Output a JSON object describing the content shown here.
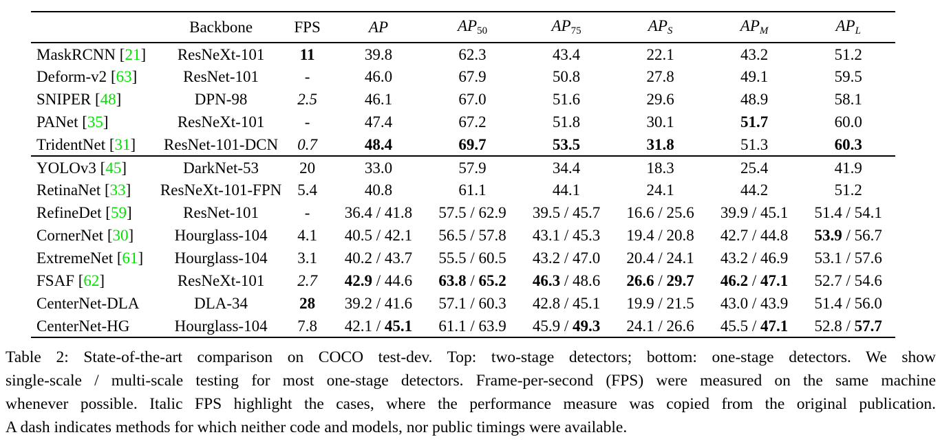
{
  "colors": {
    "citation_green": "#00e400",
    "text": "#000000",
    "rule": "#000000"
  },
  "table": {
    "headers": {
      "method": "",
      "backbone": "Backbone",
      "fps": "FPS",
      "metrics": [
        {
          "base": "AP",
          "sub": ""
        },
        {
          "base": "AP",
          "sub": "50"
        },
        {
          "base": "AP",
          "sub": "75"
        },
        {
          "base": "AP",
          "sub": "S"
        },
        {
          "base": "AP",
          "sub": "M"
        },
        {
          "base": "AP",
          "sub": "L"
        }
      ]
    },
    "sections": {
      "top": [
        {
          "method": "MaskRCNN",
          "cite": "21",
          "backbone": "ResNeXt-101",
          "fps": {
            "t": "11",
            "b": true
          },
          "metrics": [
            [
              {
                "t": "39.8"
              }
            ],
            [
              {
                "t": "62.3"
              }
            ],
            [
              {
                "t": "43.4"
              }
            ],
            [
              {
                "t": "22.1"
              }
            ],
            [
              {
                "t": "43.2"
              }
            ],
            [
              {
                "t": "51.2"
              }
            ]
          ]
        },
        {
          "method": "Deform-v2",
          "cite": "63",
          "backbone": "ResNet-101",
          "fps": {
            "t": "-"
          },
          "metrics": [
            [
              {
                "t": "46.0"
              }
            ],
            [
              {
                "t": "67.9"
              }
            ],
            [
              {
                "t": "50.8"
              }
            ],
            [
              {
                "t": "27.8"
              }
            ],
            [
              {
                "t": "49.1"
              }
            ],
            [
              {
                "t": "59.5"
              }
            ]
          ]
        },
        {
          "method": "SNIPER",
          "cite": "48",
          "backbone": "DPN-98",
          "fps": {
            "t": "2.5",
            "i": true
          },
          "metrics": [
            [
              {
                "t": "46.1"
              }
            ],
            [
              {
                "t": "67.0"
              }
            ],
            [
              {
                "t": "51.6"
              }
            ],
            [
              {
                "t": "29.6"
              }
            ],
            [
              {
                "t": "48.9"
              }
            ],
            [
              {
                "t": "58.1"
              }
            ]
          ]
        },
        {
          "method": "PANet",
          "cite": "35",
          "backbone": "ResNeXt-101",
          "fps": {
            "t": "-"
          },
          "metrics": [
            [
              {
                "t": "47.4"
              }
            ],
            [
              {
                "t": "67.2"
              }
            ],
            [
              {
                "t": "51.8"
              }
            ],
            [
              {
                "t": "30.1"
              }
            ],
            [
              {
                "t": "51.7",
                "b": true
              }
            ],
            [
              {
                "t": "60.0"
              }
            ]
          ]
        },
        {
          "method": "TridentNet",
          "cite": "31",
          "backbone": "ResNet-101-DCN",
          "fps": {
            "t": "0.7",
            "i": true
          },
          "metrics": [
            [
              {
                "t": "48.4",
                "b": true
              }
            ],
            [
              {
                "t": "69.7",
                "b": true
              }
            ],
            [
              {
                "t": "53.5",
                "b": true
              }
            ],
            [
              {
                "t": "31.8",
                "b": true
              }
            ],
            [
              {
                "t": "51.3"
              }
            ],
            [
              {
                "t": "60.3",
                "b": true
              }
            ]
          ]
        }
      ],
      "bottom": [
        {
          "method": "YOLOv3",
          "cite": "45",
          "backbone": "DarkNet-53",
          "fps": {
            "t": "20"
          },
          "metrics": [
            [
              {
                "t": "33.0"
              }
            ],
            [
              {
                "t": "57.9"
              }
            ],
            [
              {
                "t": "34.4"
              }
            ],
            [
              {
                "t": "18.3"
              }
            ],
            [
              {
                "t": "25.4"
              }
            ],
            [
              {
                "t": "41.9"
              }
            ]
          ]
        },
        {
          "method": "RetinaNet",
          "cite": "33",
          "backbone": "ResNeXt-101-FPN",
          "fps": {
            "t": "5.4"
          },
          "metrics": [
            [
              {
                "t": "40.8"
              }
            ],
            [
              {
                "t": "61.1"
              }
            ],
            [
              {
                "t": "44.1"
              }
            ],
            [
              {
                "t": "24.1"
              }
            ],
            [
              {
                "t": "44.2"
              }
            ],
            [
              {
                "t": "51.2"
              }
            ]
          ]
        },
        {
          "method": "RefineDet",
          "cite": "59",
          "backbone": "ResNet-101",
          "fps": {
            "t": "-"
          },
          "metrics": [
            [
              {
                "t": "36.4"
              },
              {
                "t": "41.8"
              }
            ],
            [
              {
                "t": "57.5"
              },
              {
                "t": "62.9"
              }
            ],
            [
              {
                "t": "39.5"
              },
              {
                "t": "45.7"
              }
            ],
            [
              {
                "t": "16.6"
              },
              {
                "t": "25.6"
              }
            ],
            [
              {
                "t": "39.9"
              },
              {
                "t": "45.1"
              }
            ],
            [
              {
                "t": "51.4"
              },
              {
                "t": "54.1"
              }
            ]
          ]
        },
        {
          "method": "CornerNet",
          "cite": "30",
          "backbone": "Hourglass-104",
          "fps": {
            "t": "4.1"
          },
          "metrics": [
            [
              {
                "t": "40.5"
              },
              {
                "t": "42.1"
              }
            ],
            [
              {
                "t": "56.5"
              },
              {
                "t": "57.8"
              }
            ],
            [
              {
                "t": "43.1"
              },
              {
                "t": "45.3"
              }
            ],
            [
              {
                "t": "19.4"
              },
              {
                "t": "20.8"
              }
            ],
            [
              {
                "t": "42.7"
              },
              {
                "t": "44.8"
              }
            ],
            [
              {
                "t": "53.9",
                "b": true
              },
              {
                "t": "56.7"
              }
            ]
          ]
        },
        {
          "method": "ExtremeNet",
          "cite": "61",
          "backbone": "Hourglass-104",
          "fps": {
            "t": "3.1"
          },
          "metrics": [
            [
              {
                "t": "40.2"
              },
              {
                "t": "43.7"
              }
            ],
            [
              {
                "t": "55.5"
              },
              {
                "t": "60.5"
              }
            ],
            [
              {
                "t": "43.2"
              },
              {
                "t": "47.0"
              }
            ],
            [
              {
                "t": "20.4"
              },
              {
                "t": "24.1"
              }
            ],
            [
              {
                "t": "43.2"
              },
              {
                "t": "46.9"
              }
            ],
            [
              {
                "t": "53.1"
              },
              {
                "t": "57.6"
              }
            ]
          ]
        },
        {
          "method": "FSAF",
          "cite": "62",
          "backbone": "ResNeXt-101",
          "fps": {
            "t": "2.7",
            "i": true
          },
          "metrics": [
            [
              {
                "t": "42.9",
                "b": true
              },
              {
                "t": "44.6"
              }
            ],
            [
              {
                "t": "63.8",
                "b": true
              },
              {
                "t": "65.2",
                "b": true
              }
            ],
            [
              {
                "t": "46.3",
                "b": true
              },
              {
                "t": "48.6"
              }
            ],
            [
              {
                "t": "26.6",
                "b": true
              },
              {
                "t": "29.7",
                "b": true
              }
            ],
            [
              {
                "t": "46.2",
                "b": true
              },
              {
                "t": "47.1",
                "b": true
              }
            ],
            [
              {
                "t": "52.7"
              },
              {
                "t": "54.6"
              }
            ]
          ]
        },
        {
          "method": "CenterNet-DLA",
          "cite": null,
          "backbone": "DLA-34",
          "fps": {
            "t": "28",
            "b": true
          },
          "metrics": [
            [
              {
                "t": "39.2"
              },
              {
                "t": "41.6"
              }
            ],
            [
              {
                "t": "57.1"
              },
              {
                "t": "60.3"
              }
            ],
            [
              {
                "t": "42.8"
              },
              {
                "t": "45.1"
              }
            ],
            [
              {
                "t": "19.9"
              },
              {
                "t": "21.5"
              }
            ],
            [
              {
                "t": "43.0"
              },
              {
                "t": "43.9"
              }
            ],
            [
              {
                "t": "51.4"
              },
              {
                "t": "56.0"
              }
            ]
          ]
        },
        {
          "method": "CenterNet-HG",
          "cite": null,
          "backbone": "Hourglass-104",
          "fps": {
            "t": "7.8"
          },
          "metrics": [
            [
              {
                "t": "42.1"
              },
              {
                "t": "45.1",
                "b": true
              }
            ],
            [
              {
                "t": "61.1"
              },
              {
                "t": "63.9"
              }
            ],
            [
              {
                "t": "45.9"
              },
              {
                "t": "49.3",
                "b": true
              }
            ],
            [
              {
                "t": "24.1"
              },
              {
                "t": "26.6"
              }
            ],
            [
              {
                "t": "45.5"
              },
              {
                "t": "47.1",
                "b": true
              }
            ],
            [
              {
                "t": "52.8"
              },
              {
                "t": "57.7",
                "b": true
              }
            ]
          ]
        }
      ]
    },
    "value_separator": " / "
  },
  "caption": {
    "lines": [
      "Table 2: State-of-the-art comparison on COCO test-dev. Top: two-stage detectors; bottom: one-stage detectors. We show",
      "single-scale / multi-scale testing for most one-stage detectors. Frame-per-second (FPS) were measured on the same machine",
      "whenever possible. Italic FPS highlight the cases, where the performance measure was copied from the original publication.",
      "A dash indicates methods for which neither code and models, nor public timings were available."
    ]
  }
}
